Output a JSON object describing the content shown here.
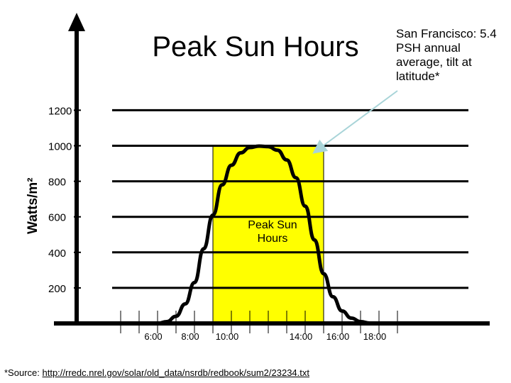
{
  "chart_data": {
    "type": "area",
    "title": "Peak Sun Hours",
    "ylabel": "Watts/m²",
    "xlabel": "",
    "ylim": [
      0,
      1200
    ],
    "yticks": [
      200,
      400,
      600,
      800,
      1000,
      1200
    ],
    "ytick_labels": [
      "200",
      "400",
      "600",
      "800",
      "1000",
      "1200"
    ],
    "xlim": [
      3,
      20
    ],
    "xticks": [
      4,
      5,
      6,
      7,
      8,
      9,
      10,
      11,
      12,
      13,
      14,
      15,
      16,
      17,
      18,
      19
    ],
    "xtick_labels": [
      {
        "x": 6,
        "label": "6:00"
      },
      {
        "x": 8,
        "label": "8:00"
      },
      {
        "x": 10,
        "label": "10:00"
      },
      {
        "x": 14,
        "label": "14:00"
      },
      {
        "x": 16,
        "label": "16:00"
      },
      {
        "x": 18,
        "label": "18:00"
      }
    ],
    "grid": true,
    "curve": {
      "x": [
        6,
        6.5,
        7,
        7.5,
        8,
        8.5,
        9,
        9.5,
        10,
        10.5,
        11,
        11.5,
        12,
        12.5,
        13,
        13.5,
        14,
        14.5,
        15,
        15.5,
        16,
        16.5,
        17,
        17.5,
        18
      ],
      "y": [
        0,
        10,
        40,
        110,
        230,
        420,
        610,
        780,
        890,
        960,
        990,
        998,
        995,
        975,
        920,
        820,
        660,
        470,
        280,
        150,
        70,
        30,
        10,
        2,
        0
      ]
    },
    "peak_band": {
      "x_start": 9,
      "x_end": 15,
      "y": 1000,
      "color": "#ffff00",
      "label": "Peak Sun Hours"
    },
    "annotation": {
      "text": "San Francisco: 5.4 PSH annual average, tilt at latitude*",
      "points_to": {
        "x": 14.3,
        "y": 1000
      },
      "arrow_color": "#a8d4d8"
    }
  },
  "source": {
    "prefix": "*Source: ",
    "link": "http://rredc.nrel.gov/solar/old_data/nsrdb/redbook/sum2/23234.txt"
  }
}
